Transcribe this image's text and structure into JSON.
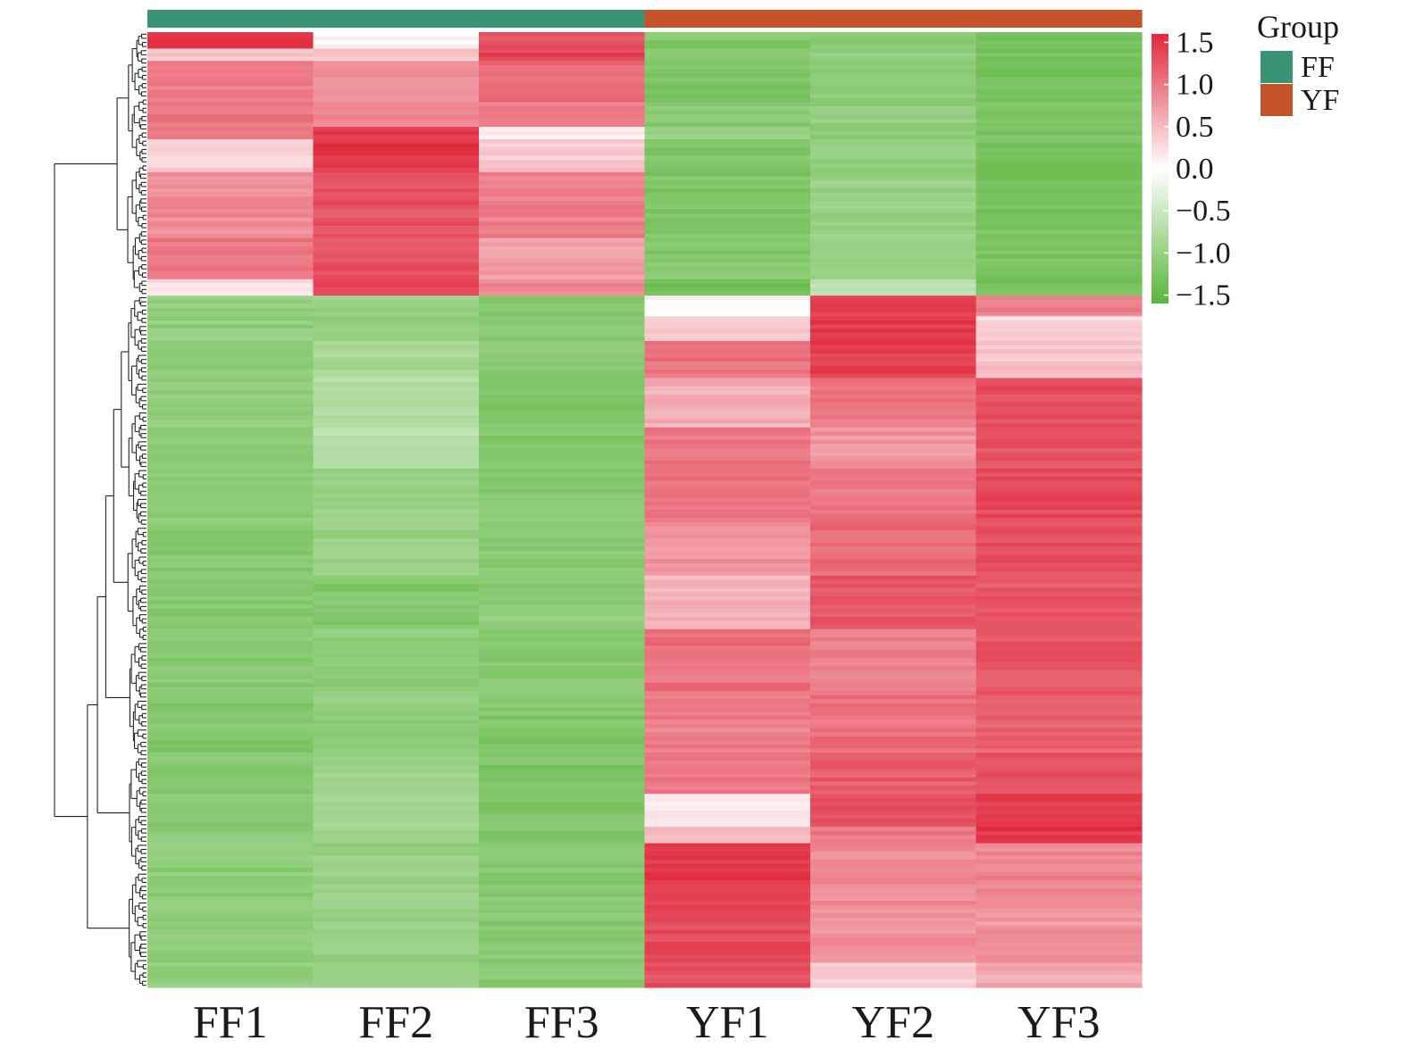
{
  "chart_data": {
    "type": "heatmap",
    "columns": [
      "FF1",
      "FF2",
      "FF3",
      "YF1",
      "YF2",
      "YF3"
    ],
    "column_groups": [
      "FF",
      "FF",
      "FF",
      "YF",
      "YF",
      "YF"
    ],
    "group_legend": {
      "title": "Group",
      "items": [
        {
          "label": "FF",
          "color": "#3a9372"
        },
        {
          "label": "YF",
          "color": "#c4532a"
        }
      ]
    },
    "color_scale": {
      "min": -1.6,
      "max": 1.6,
      "low_color": "#5ab53a",
      "mid_color": "#ffffff",
      "high_color": "#e0283b",
      "ticks": [
        1.5,
        1.0,
        0.5,
        0.0,
        -0.5,
        -1.0,
        -1.5
      ],
      "tick_labels": [
        "1.5",
        "1.0",
        "0.5",
        "0.0",
        "−0.5",
        "−1.0",
        "−1.5"
      ]
    },
    "row_dendrogram": true,
    "row_blocks": [
      {
        "rows": 4,
        "values": [
          1.45,
          0.05,
          1.3,
          -1.2,
          -1.1,
          -1.3
        ]
      },
      {
        "rows": 3,
        "values": [
          0.45,
          0.4,
          1.4,
          -1.2,
          -1.05,
          -1.3
        ]
      },
      {
        "rows": 10,
        "values": [
          0.95,
          0.85,
          1.1,
          -1.25,
          -1.1,
          -1.3
        ]
      },
      {
        "rows": 6,
        "values": [
          1.0,
          0.9,
          1.0,
          -1.15,
          -1.05,
          -1.3
        ]
      },
      {
        "rows": 3,
        "values": [
          0.95,
          1.45,
          0.1,
          -0.95,
          -1.1,
          -1.25
        ]
      },
      {
        "rows": 8,
        "values": [
          0.35,
          1.5,
          0.4,
          -1.2,
          -1.05,
          -1.3
        ]
      },
      {
        "rows": 16,
        "values": [
          0.85,
          1.3,
          0.95,
          -1.25,
          -1.0,
          -1.3
        ]
      },
      {
        "rows": 10,
        "values": [
          1.05,
          1.3,
          0.7,
          -1.2,
          -1.05,
          -1.3
        ]
      },
      {
        "rows": 4,
        "values": [
          0.2,
          1.4,
          0.9,
          -1.35,
          -0.6,
          -1.3
        ]
      },
      {
        "rows": 5,
        "values": [
          -1.05,
          -1.0,
          -1.15,
          0.05,
          1.45,
          0.95
        ]
      },
      {
        "rows": 6,
        "values": [
          -1.05,
          -1.0,
          -1.15,
          0.45,
          1.45,
          0.3
        ]
      },
      {
        "rows": 9,
        "values": [
          -1.1,
          -0.85,
          -1.15,
          1.05,
          1.45,
          0.45
        ]
      },
      {
        "rows": 12,
        "values": [
          -1.05,
          -0.75,
          -1.2,
          0.6,
          1.0,
          1.3
        ]
      },
      {
        "rows": 10,
        "values": [
          -1.1,
          -0.7,
          -1.2,
          1.0,
          0.8,
          1.3
        ]
      },
      {
        "rows": 13,
        "values": [
          -1.1,
          -0.95,
          -1.15,
          1.05,
          1.0,
          1.35
        ]
      },
      {
        "rows": 13,
        "values": [
          -1.15,
          -1.0,
          -1.15,
          0.8,
          1.1,
          1.3
        ]
      },
      {
        "rows": 13,
        "values": [
          -1.15,
          -1.2,
          -1.1,
          0.55,
          1.25,
          1.25
        ]
      },
      {
        "rows": 16,
        "values": [
          -1.15,
          -1.1,
          -1.15,
          1.05,
          0.95,
          1.25
        ]
      },
      {
        "rows": 14,
        "values": [
          -1.2,
          -1.05,
          -1.2,
          0.95,
          1.05,
          1.15
        ]
      },
      {
        "rows": 10,
        "values": [
          -1.15,
          -0.95,
          -1.25,
          1.0,
          1.2,
          1.3
        ]
      },
      {
        "rows": 8,
        "values": [
          -1.1,
          -0.85,
          -1.2,
          0.2,
          1.3,
          1.4
        ]
      },
      {
        "rows": 4,
        "values": [
          -1.1,
          -1.0,
          -1.2,
          0.5,
          1.0,
          1.5
        ]
      },
      {
        "rows": 15,
        "values": [
          -1.1,
          -1.0,
          -1.15,
          1.45,
          0.85,
          0.9
        ]
      },
      {
        "rows": 14,
        "values": [
          -1.1,
          -1.0,
          -1.15,
          1.35,
          0.8,
          0.8
        ]
      },
      {
        "rows": 6,
        "values": [
          -1.05,
          -1.05,
          -1.15,
          1.3,
          0.4,
          0.65
        ]
      }
    ]
  }
}
